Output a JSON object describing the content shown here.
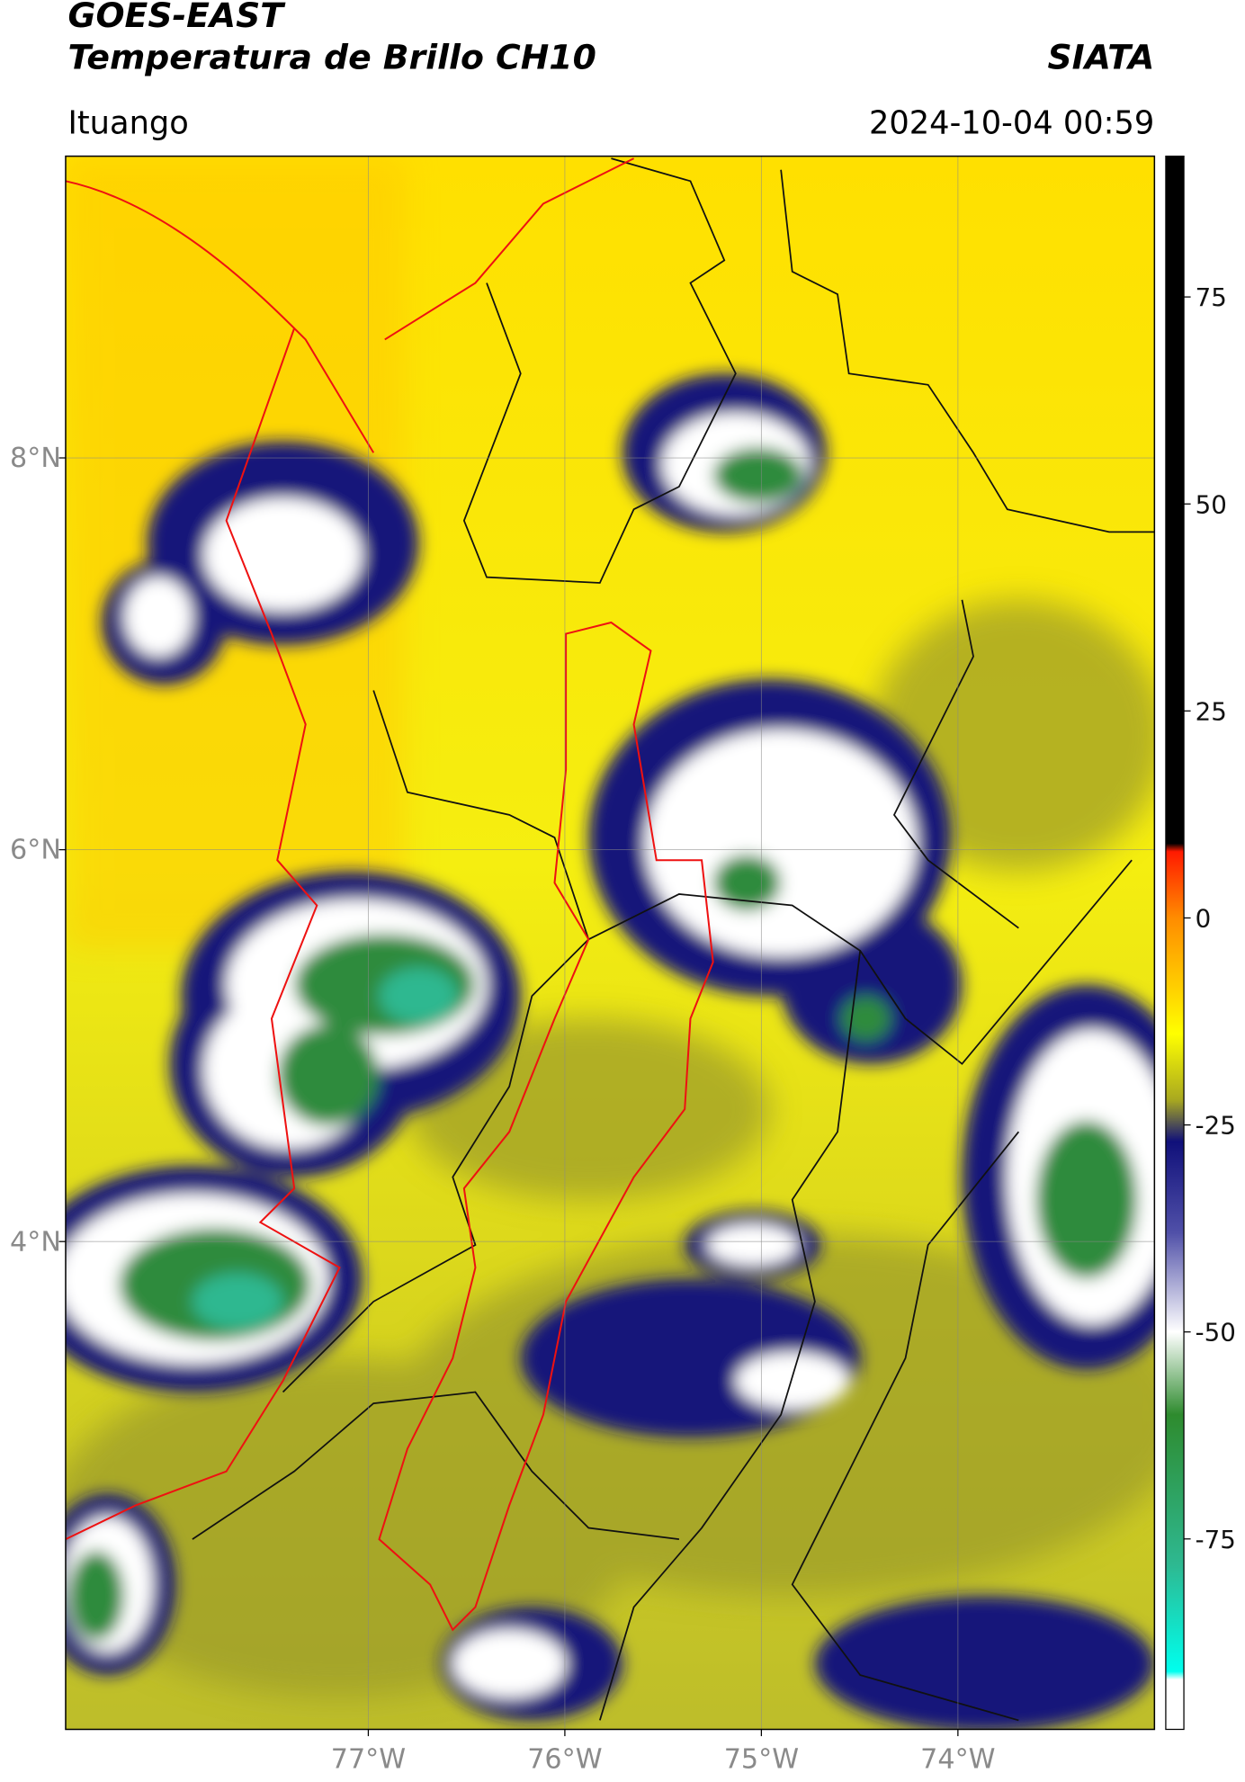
{
  "header": {
    "title": "GOES-EAST",
    "subtitle": "Temperatura de Brillo CH10",
    "brand": "SIATA",
    "location": "Ituango",
    "timestamp": "2024-10-04 00:59"
  },
  "map": {
    "xlim": [
      -78.54,
      -73.0
    ],
    "ylim": [
      1.51,
      9.54
    ],
    "xticks": [
      {
        "value": -77,
        "label": "77°W"
      },
      {
        "value": -76,
        "label": "76°W"
      },
      {
        "value": -75,
        "label": "75°W"
      },
      {
        "value": -74,
        "label": "74°W"
      }
    ],
    "yticks": [
      {
        "value": 8,
        "label": "8°N"
      },
      {
        "value": 6,
        "label": "6°N"
      },
      {
        "value": 4,
        "label": "4°N"
      }
    ],
    "grid": true
  },
  "colorbar": {
    "lim": [
      -98,
      92
    ],
    "ticks": [
      75,
      50,
      25,
      0,
      -25,
      -50,
      -75
    ],
    "stops": [
      {
        "value": 92,
        "color": "#000000"
      },
      {
        "value": 9,
        "color": "#000000"
      },
      {
        "value": 8,
        "color": "#ff1a00"
      },
      {
        "value": 0,
        "color": "#ff8c00"
      },
      {
        "value": -8,
        "color": "#ffcc00"
      },
      {
        "value": -14,
        "color": "#ffff00"
      },
      {
        "value": -22,
        "color": "#a8a820"
      },
      {
        "value": -27,
        "color": "#10107a"
      },
      {
        "value": -38,
        "color": "#5050a8"
      },
      {
        "value": -50,
        "color": "#ffffff"
      },
      {
        "value": -60,
        "color": "#2e8b2e"
      },
      {
        "value": -78,
        "color": "#2eb890"
      },
      {
        "value": -91,
        "color": "#00ffee"
      },
      {
        "value": -92,
        "color": "#ffffff"
      },
      {
        "value": -98,
        "color": "#ffffff"
      }
    ]
  }
}
